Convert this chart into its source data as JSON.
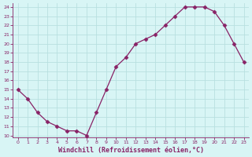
{
  "x": [
    0,
    1,
    2,
    3,
    4,
    5,
    6,
    7,
    8,
    9,
    10,
    11,
    12,
    13,
    14,
    15,
    16,
    17,
    18,
    19,
    20,
    21,
    22,
    23
  ],
  "y": [
    15,
    14,
    12.5,
    11.5,
    11,
    10.5,
    10.5,
    10,
    12.5,
    15,
    17.5,
    18.5,
    20,
    20.5,
    21,
    22,
    23,
    24,
    24,
    24,
    23.5,
    22,
    20,
    18
  ],
  "line_color": "#882266",
  "marker": "D",
  "marker_size": 2.5,
  "bg_color": "#d8f5f5",
  "grid_color": "#b8e0e0",
  "xlabel": "Windchill (Refroidissement éolien,°C)",
  "xlabel_color": "#882266",
  "tick_color": "#882266",
  "ylim": [
    10,
    24
  ],
  "xlim": [
    -0.5,
    23.5
  ],
  "yticks": [
    10,
    11,
    12,
    13,
    14,
    15,
    16,
    17,
    18,
    19,
    20,
    21,
    22,
    23,
    24
  ],
  "xticks": [
    0,
    1,
    2,
    3,
    4,
    5,
    6,
    7,
    8,
    9,
    10,
    11,
    12,
    13,
    14,
    15,
    16,
    17,
    18,
    19,
    20,
    21,
    22,
    23
  ]
}
